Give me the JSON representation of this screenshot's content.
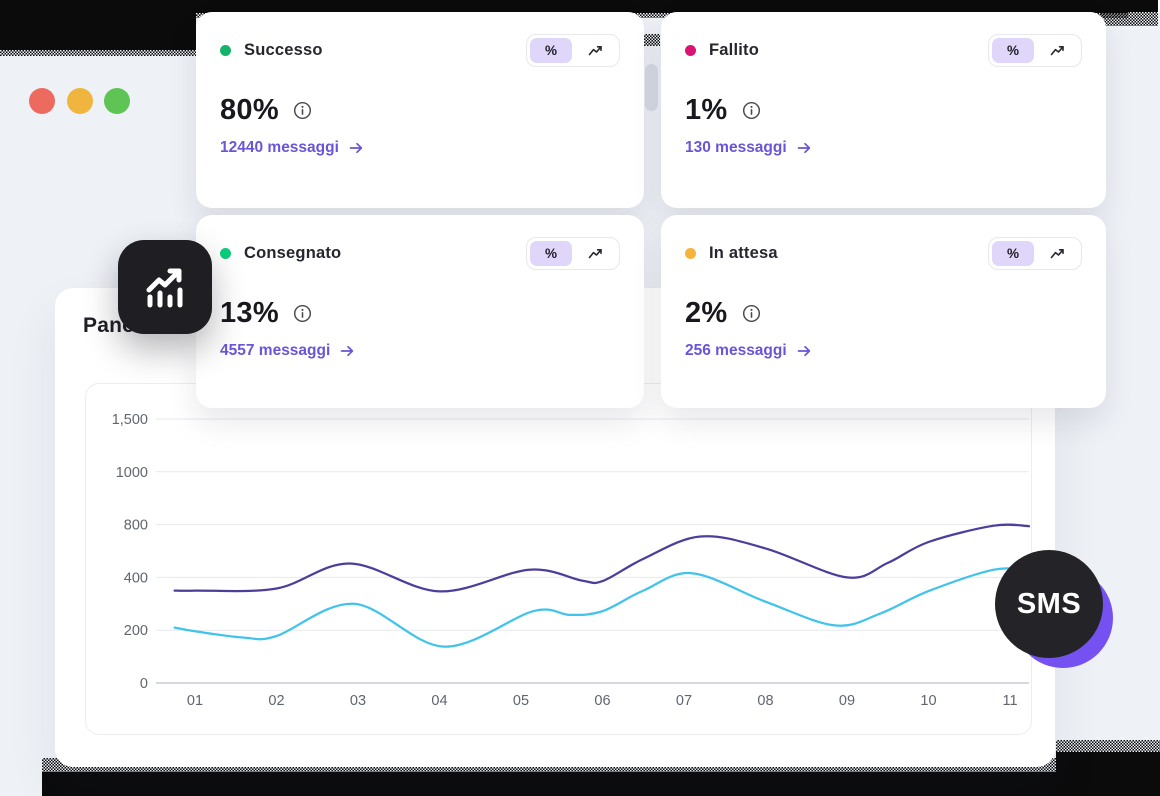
{
  "window": {
    "traffic_lights": {
      "close": "#ED6A5F",
      "minimize": "#F0B53E",
      "zoom": "#5EC454"
    },
    "background_color": "#EEF1F6"
  },
  "overview_panel": {
    "title": "Panoramica"
  },
  "card_controls": {
    "percent_toggle_label": "%"
  },
  "stat_cards": [
    {
      "label": "Successo",
      "dot_color": "#17B26A",
      "value": "80%",
      "link_label": "12440 messaggi"
    },
    {
      "label": "Fallito",
      "dot_color": "#DB1473",
      "value": "1%",
      "link_label": "130 messaggi"
    },
    {
      "label": "Consegnato",
      "dot_color": "#0CCE7C",
      "value": "13%",
      "link_label": "4557 messaggi"
    },
    {
      "label": "In attesa",
      "dot_color": "#F5B23C",
      "value": "2%",
      "link_label": "256 messaggi"
    }
  ],
  "sms_badge": {
    "label": "SMS",
    "circle_color": "#242428",
    "accent_color": "#7551F2"
  },
  "chart_data": {
    "type": "line",
    "title": "Panoramica",
    "x_tick_labels": [
      "01",
      "02",
      "03",
      "04",
      "05",
      "06",
      "07",
      "08",
      "09",
      "10",
      "11"
    ],
    "y_axis_labels_top_to_bottom": [
      "1,500",
      "1000",
      "800",
      "400",
      "200",
      "0"
    ],
    "y_axis_values_top_to_bottom": [
      1500,
      1000,
      800,
      400,
      200,
      0
    ],
    "grid": true,
    "legend": "none",
    "axis_text_color": "#61656F",
    "grid_color": "#E7E9EE",
    "baseline_color": "#C8CBD3",
    "series": [
      {
        "name": "series-purple",
        "color": "#4E3D9B",
        "points": [
          [
            0.75,
            350
          ],
          [
            1,
            350
          ],
          [
            2,
            358
          ],
          [
            2.9,
            505
          ],
          [
            4,
            347
          ],
          [
            5.1,
            458
          ],
          [
            5.75,
            388
          ],
          [
            6,
            386
          ],
          [
            6.5,
            540
          ],
          [
            7.2,
            710
          ],
          [
            8,
            620
          ],
          [
            9,
            400
          ],
          [
            9.5,
            510
          ],
          [
            10,
            668
          ],
          [
            10.8,
            792
          ],
          [
            11.25,
            788
          ]
        ]
      },
      {
        "name": "series-cyan",
        "color": "#41C3EB",
        "points": [
          [
            0.75,
            210
          ],
          [
            1,
            196
          ],
          [
            1.6,
            172
          ],
          [
            2,
            178
          ],
          [
            2.95,
            300
          ],
          [
            4.05,
            138
          ],
          [
            5.15,
            272
          ],
          [
            5.6,
            258
          ],
          [
            6,
            272
          ],
          [
            6.5,
            350
          ],
          [
            7.1,
            432
          ],
          [
            8,
            308
          ],
          [
            8.85,
            218
          ],
          [
            9.4,
            262
          ],
          [
            10,
            348
          ],
          [
            10.8,
            458
          ],
          [
            11.25,
            452
          ]
        ]
      }
    ]
  }
}
